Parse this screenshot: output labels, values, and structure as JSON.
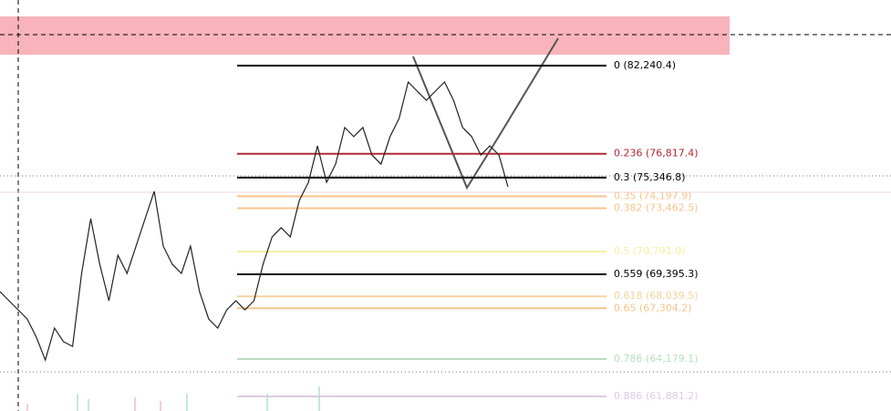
{
  "chart_data": {
    "type": "line",
    "series": [
      {
        "name": null,
        "color": "#222222",
        "values": [
          68330,
          67770,
          67210,
          66650,
          65530,
          64120,
          66090,
          65250,
          64960,
          69450,
          72820,
          70010,
          67770,
          70570,
          69450,
          71130,
          72820,
          74500,
          71130,
          70010,
          69450,
          71130,
          68330,
          66650,
          66090,
          67210,
          67770,
          67210,
          67770,
          70010,
          71700,
          72260,
          71700,
          73940,
          75060,
          77300,
          75060,
          76180,
          78430,
          77870,
          78430,
          76740,
          76180,
          77870,
          78990,
          81230,
          80670,
          80110,
          80670,
          81230,
          80110,
          78430,
          77870,
          76740,
          77300,
          76740,
          74780
        ]
      }
    ],
    "fib_levels": [
      {
        "label": "0 (82,240.4)",
        "price": 82240.4,
        "color": "#000000"
      },
      {
        "label": "0.236 (76,817.4)",
        "price": 76817.4,
        "color": "#b22833"
      },
      {
        "label": "0.3 (75,346.8)",
        "price": 75346.8,
        "color": "#000000"
      },
      {
        "label": "0.35 (74,197.9)",
        "price": 74197.9,
        "color": "#f6c48e"
      },
      {
        "label": "0.382 (73,462.5)",
        "price": 73462.5,
        "color": "#f6c48e"
      },
      {
        "label": "0.5 (70,791.0)",
        "price": 70791.0,
        "color": "#f8eea0"
      },
      {
        "label": "0.559 (69,395.3)",
        "price": 69395.3,
        "color": "#000000"
      },
      {
        "label": "0.618 (68,039.5)",
        "price": 68039.5,
        "color": "#f4d39c"
      },
      {
        "label": "0.65 (67,304.2)",
        "price": 67304.2,
        "color": "#f2c58c"
      },
      {
        "label": "0.786 (64,179.1)",
        "price": 64179.1,
        "color": "#b9dfbf"
      },
      {
        "label": "0.886 (61,881.2)",
        "price": 61881.2,
        "color": "#dccbe3"
      }
    ]
  }
}
